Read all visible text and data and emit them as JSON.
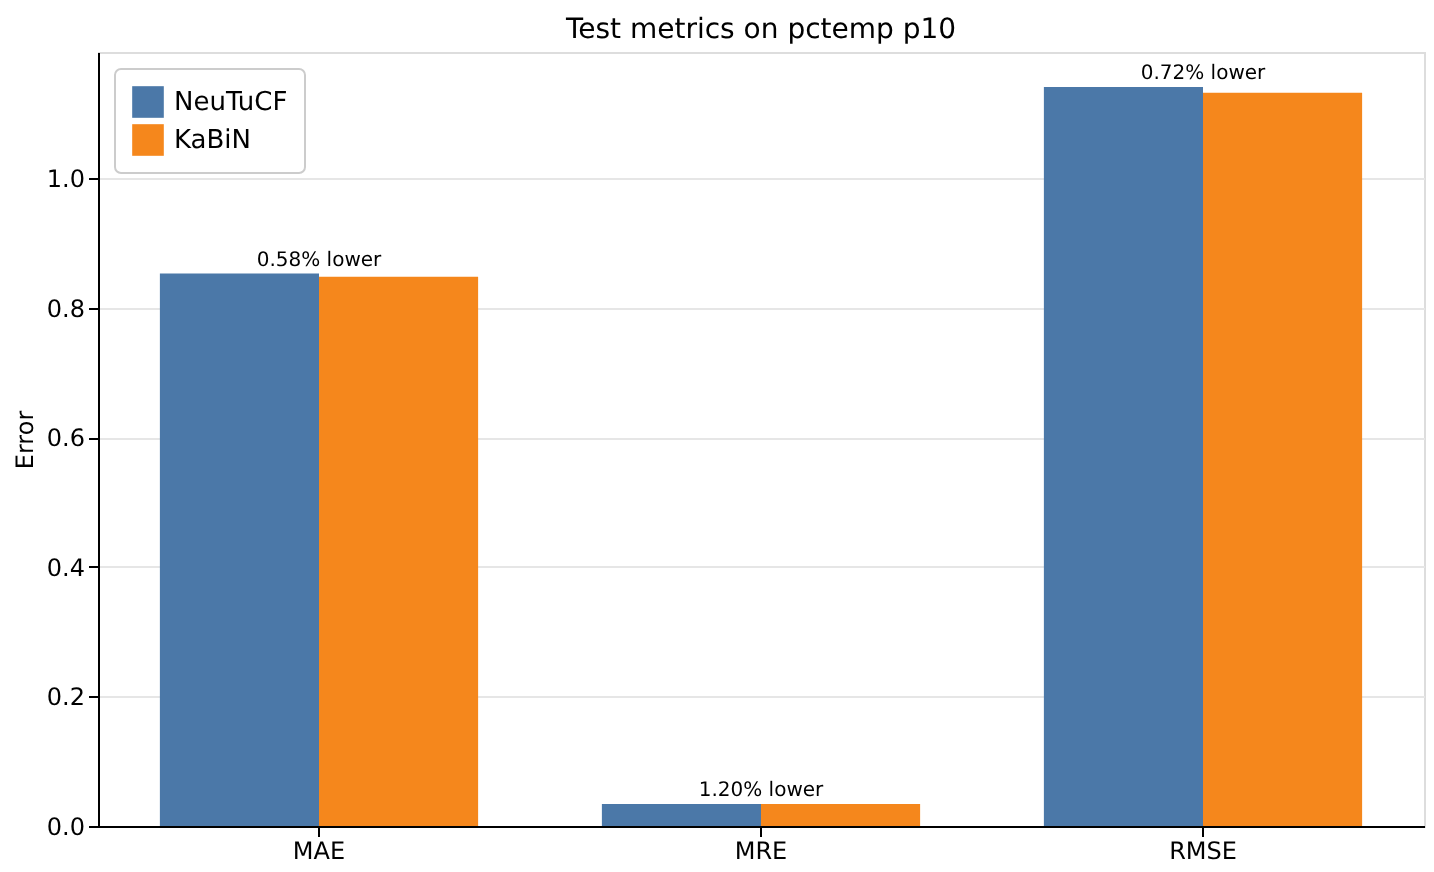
{
  "chart_data": {
    "type": "bar",
    "title": "Test metrics on pctemp p10",
    "ylabel": "Error",
    "categories": [
      "MAE",
      "MRE",
      "RMSE"
    ],
    "series": [
      {
        "name": "NeuTuCF",
        "color": "#4b78a8",
        "values": [
          0.853,
          0.034,
          1.141
        ]
      },
      {
        "name": "KaBiN",
        "color": "#f5871c",
        "values": [
          0.848,
          0.034,
          1.132
        ]
      }
    ],
    "ylim": [
      0,
      1.195
    ],
    "yticks": [
      {
        "value": 0,
        "label": "0.0"
      },
      {
        "value": 0.2,
        "label": "0.2"
      },
      {
        "value": 0.4,
        "label": "0.4"
      },
      {
        "value": 0.6,
        "label": "0.6"
      },
      {
        "value": 0.8,
        "label": "0.8"
      },
      {
        "value": 1.0,
        "label": "1.0"
      }
    ],
    "grid": "y",
    "legend": "top left",
    "annotations": [
      {
        "text": "0.58% lower",
        "x": "MAE",
        "y": 0.853
      },
      {
        "text": "1.20% lower",
        "x": "MRE",
        "y": 0.034
      },
      {
        "text": "0.72% lower",
        "x": "RMSE",
        "y": 1.141
      }
    ]
  }
}
